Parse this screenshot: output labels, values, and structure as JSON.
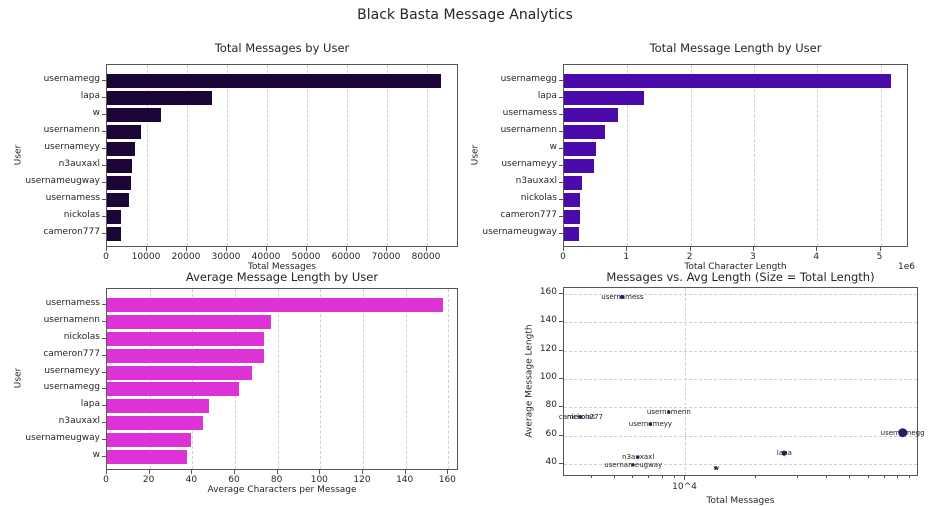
{
  "title": "Black Basta Message Analytics",
  "colors": {
    "total_messages_bar": "#1a0536",
    "total_length_bar": "#4b0aaa",
    "avg_length_bar": "#dd33d6",
    "scatter_point": "#2a1a80"
  },
  "chart_data": [
    {
      "type": "bar",
      "orientation": "horizontal",
      "title": "Total Messages by User",
      "xlabel": "Total Messages",
      "ylabel": "User",
      "categories": [
        "usernamegg",
        "lapa",
        "w",
        "usernamenn",
        "usernameyy",
        "n3auxaxl",
        "usernameugway",
        "usernamess",
        "nickolas",
        "cameron777"
      ],
      "values": [
        83500,
        26300,
        13500,
        8500,
        7100,
        6300,
        6000,
        5400,
        3600,
        3600
      ],
      "xlim": [
        0,
        88000
      ],
      "xticks": [
        "0",
        "10000",
        "20000",
        "30000",
        "40000",
        "50000",
        "60000",
        "70000",
        "80000"
      ],
      "grid": "x-dashed"
    },
    {
      "type": "bar",
      "orientation": "horizontal",
      "title": "Total Message Length by User",
      "xlabel": "Total Character Length",
      "ylabel": "User",
      "offset_label": "1e6",
      "categories": [
        "usernamegg",
        "lapa",
        "usernamess",
        "usernamenn",
        "w",
        "usernameyy",
        "n3auxaxl",
        "nickolas",
        "cameron777",
        "usernameugway"
      ],
      "values": [
        5170000,
        1260000,
        860000,
        650000,
        500000,
        480000,
        280000,
        260000,
        260000,
        230000
      ],
      "xlim": [
        0,
        5450000
      ],
      "xticks": [
        "0",
        "1",
        "2",
        "3",
        "4",
        "5"
      ],
      "grid": "x-dashed"
    },
    {
      "type": "bar",
      "orientation": "horizontal",
      "title": "Average Message Length by User",
      "xlabel": "Average Characters per Message",
      "ylabel": "User",
      "categories": [
        "usernamess",
        "usernamenn",
        "nickolas",
        "cameron777",
        "usernameyy",
        "usernamegg",
        "lapa",
        "n3auxaxl",
        "usernameugway",
        "w"
      ],
      "values": [
        157.5,
        77,
        73.5,
        73.5,
        68,
        62,
        48,
        45,
        39.5,
        37.5
      ],
      "xlim": [
        0,
        165
      ],
      "xticks": [
        "0",
        "20",
        "40",
        "60",
        "80",
        "100",
        "120",
        "140",
        "160"
      ],
      "grid": "x-dashed"
    },
    {
      "type": "scatter",
      "title": "Messages vs. Avg Length (Size = Total Length)",
      "xlabel": "Total Messages",
      "ylabel": "Average Message Length",
      "xscale": "log",
      "xticks": [
        "10^4"
      ],
      "yticks": [
        "40",
        "60",
        "80",
        "100",
        "120",
        "140",
        "160"
      ],
      "ylim": [
        31,
        164
      ],
      "grid": "both-dashed",
      "points": [
        {
          "label": "usernamess",
          "x": 5400,
          "y": 157.5,
          "size": 860000
        },
        {
          "label": "usernamenn",
          "x": 8500,
          "y": 77,
          "size": 650000
        },
        {
          "label": "nickolas",
          "x": 3600,
          "y": 73.5,
          "size": 260000
        },
        {
          "label": "cameron777",
          "x": 3600,
          "y": 73.5,
          "size": 260000
        },
        {
          "label": "usernameyy",
          "x": 7100,
          "y": 68,
          "size": 480000
        },
        {
          "label": "usernamegg",
          "x": 83500,
          "y": 62,
          "size": 5170000
        },
        {
          "label": "lapa",
          "x": 26300,
          "y": 48,
          "size": 1260000
        },
        {
          "label": "n3auxaxl",
          "x": 6300,
          "y": 45,
          "size": 280000
        },
        {
          "label": "usernameugway",
          "x": 6000,
          "y": 39.5,
          "size": 230000
        },
        {
          "label": "w",
          "x": 13500,
          "y": 37.5,
          "size": 500000
        }
      ]
    }
  ]
}
